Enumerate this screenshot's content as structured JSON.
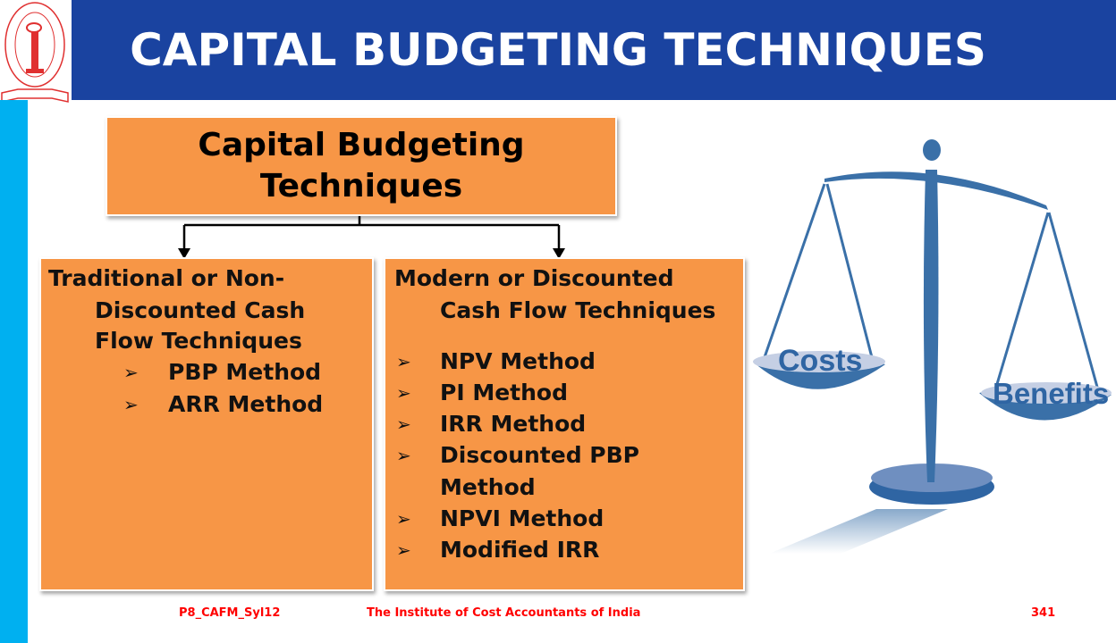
{
  "header": {
    "title": "CAPITAL BUDGETING TECHNIQUES",
    "logo_text": "THE INSTITUTE OF COST ACCOUNTANTS OF INDIA"
  },
  "colors": {
    "header": "#1a43a0",
    "sidebar": "#00b0f0",
    "box": "#f79646",
    "footer_text": "#ff0000",
    "scale": "#3a70a8"
  },
  "diagram": {
    "root": {
      "lines": [
        "Capital Budgeting",
        "Techniques"
      ]
    },
    "left": {
      "heading": [
        "Traditional or Non-",
        "Discounted Cash",
        "Flow Techniques"
      ],
      "items": [
        "PBP Method",
        "ARR Method"
      ]
    },
    "right": {
      "heading": [
        "Modern or Discounted",
        "Cash Flow Techniques"
      ],
      "items": [
        "NPV Method",
        "PI Method",
        "IRR Method",
        "Discounted PBP",
        "Method",
        "NPVI Method",
        "Modified IRR"
      ]
    },
    "bullet_icon": "arrowhead-bullet"
  },
  "illustration": {
    "left_pan": "Costs",
    "right_pan": "Benefits"
  },
  "footer": {
    "code": "P8_CAFM_Syl12",
    "institute": "The Institute of Cost Accountants of India",
    "page": "341"
  }
}
